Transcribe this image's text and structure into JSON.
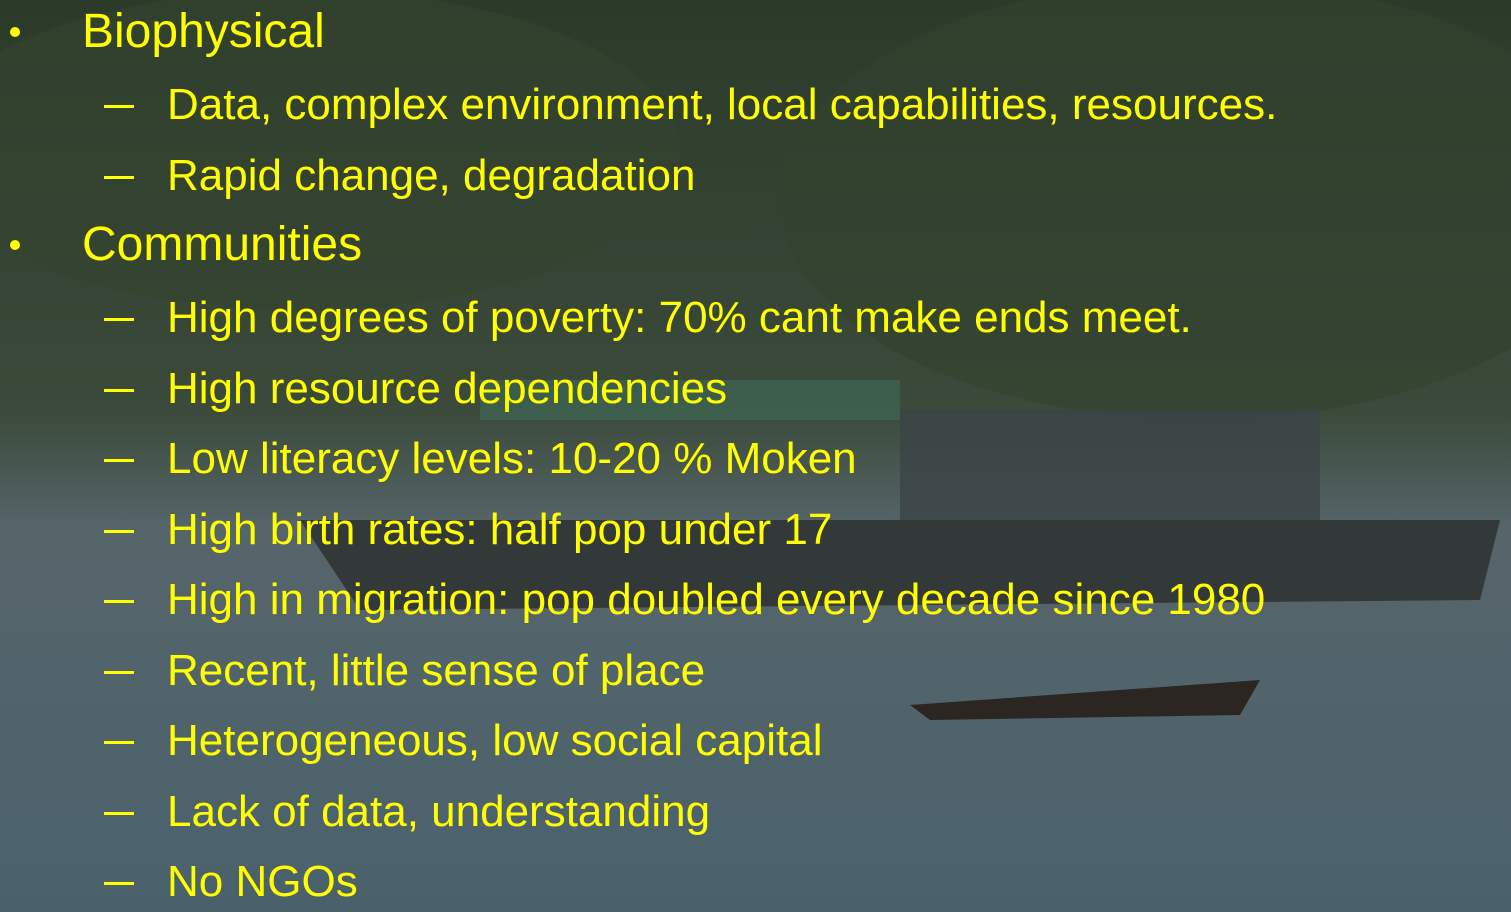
{
  "sections": [
    {
      "label": "Biophysical",
      "items": [
        "Data, complex environment, local capabilities, resources.",
        "Rapid change, degradation"
      ]
    },
    {
      "label": "Communities",
      "items": [
        "High degrees of poverty: 70% cant make ends meet.",
        "High resource dependencies",
        "Low literacy levels: 10-20 % Moken",
        "High birth rates: half pop under 17",
        "High in migration: pop doubled every decade since 1980",
        "Recent, little sense of place",
        "Heterogeneous, low social capital",
        "Lack of data, understanding",
        "No NGOs"
      ]
    }
  ]
}
